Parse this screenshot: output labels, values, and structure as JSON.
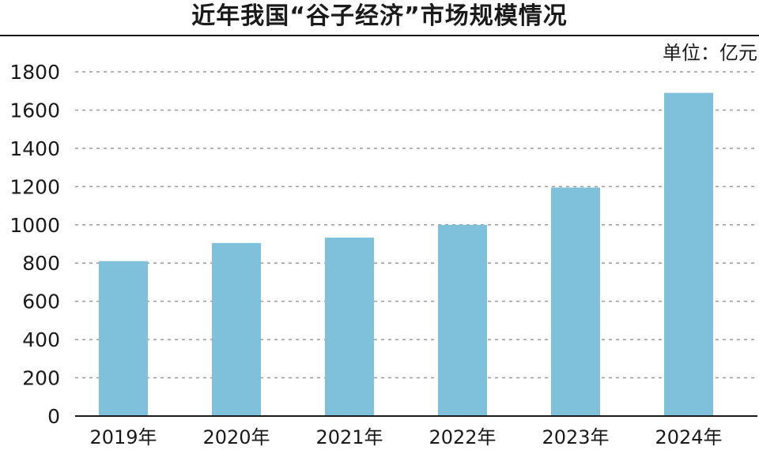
{
  "chart_data": {
    "type": "bar",
    "title": "近年我国“谷子经济”市场规模情况",
    "unit_label": "单位：亿元",
    "categories": [
      "2019年",
      "2020年",
      "2021年",
      "2022年",
      "2023年",
      "2024年"
    ],
    "values": [
      810,
      905,
      933,
      1000,
      1195,
      1690
    ],
    "ylim": [
      0,
      1800
    ],
    "yticks": [
      "0",
      "200",
      "400",
      "600",
      "800",
      "1000",
      "1200",
      "1400",
      "1600",
      "1800"
    ],
    "grid": true,
    "legend": "none",
    "colors": {
      "bar": "#7fc0db",
      "grid": "#9a9a9a",
      "axis": "#1a1a1a",
      "text": "#1a1a1a"
    }
  }
}
